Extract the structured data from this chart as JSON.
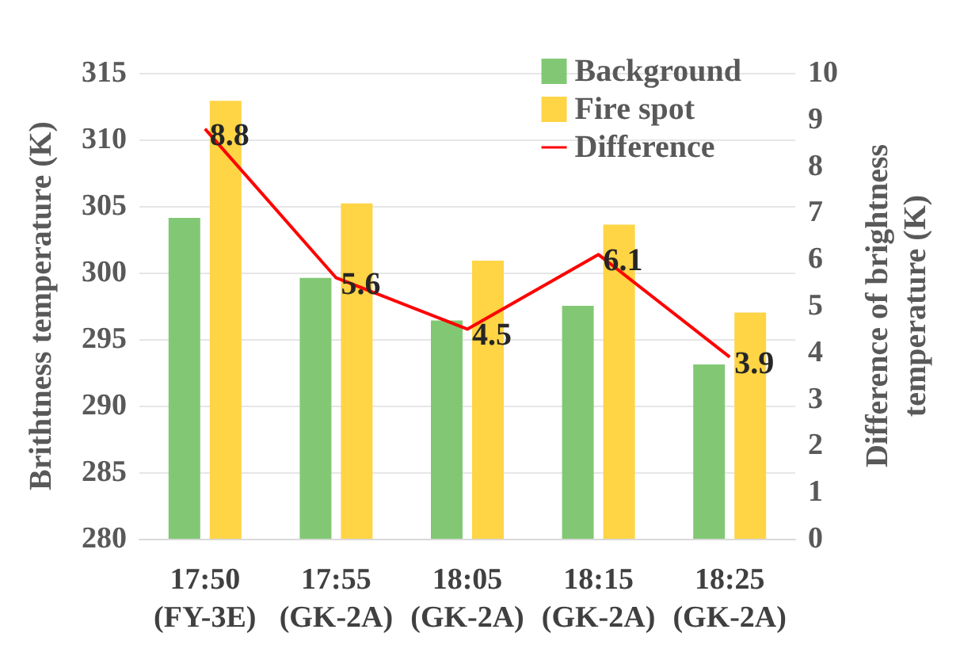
{
  "chart_data": {
    "type": "bar",
    "ylabel": "Brithtness temperature (K)",
    "y2label": "Difference of brightness\ntemperature (K)",
    "categories": [
      "17:50\n(FY-3E)",
      "17:55\n(GK-2A)",
      "18:05\n(GK-2A)",
      "18:15\n(GK-2A)",
      "18:25\n(GK-2A)"
    ],
    "series": [
      {
        "name": "Background",
        "color": "#82c874",
        "values": [
          304.1,
          299.6,
          296.4,
          297.5,
          293.1
        ]
      },
      {
        "name": "Fire spot",
        "color": "#ffd445",
        "values": [
          312.9,
          305.2,
          300.9,
          303.6,
          297.0
        ]
      },
      {
        "name": "Difference",
        "type": "line",
        "axis": "y2",
        "color": "#ff0000",
        "values": [
          8.8,
          5.6,
          4.5,
          6.1,
          3.9
        ],
        "value_labels": [
          "8.8",
          "5.6",
          "4.5",
          "6.1",
          "3.9"
        ]
      }
    ],
    "ylim": [
      280,
      315
    ],
    "yticks": [
      280,
      285,
      290,
      295,
      300,
      305,
      310,
      315
    ],
    "y2lim": [
      0,
      10
    ],
    "y2ticks": [
      0,
      1,
      2,
      3,
      4,
      5,
      6,
      7,
      8,
      9,
      10
    ],
    "grid": "y",
    "legend": "top right",
    "marker": "none"
  }
}
